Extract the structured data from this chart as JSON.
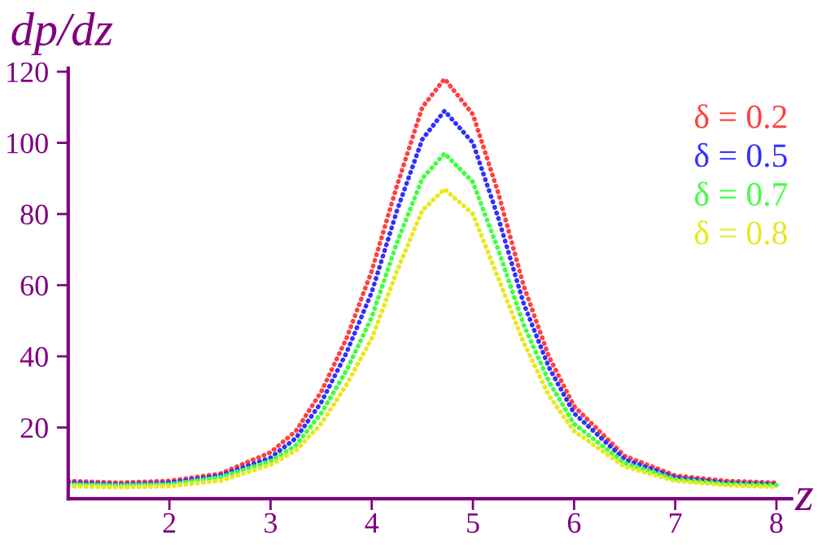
{
  "chart_data": {
    "type": "line",
    "ylabel": "dp/dz",
    "xlabel": "z",
    "xlim": [
      1,
      8.15
    ],
    "ylim": [
      0,
      121
    ],
    "xticks": [
      2,
      3,
      4,
      5,
      6,
      7,
      8
    ],
    "yticks": [
      20,
      40,
      60,
      80,
      100,
      120
    ],
    "line_style": "dotted",
    "marker": "none",
    "grid": false,
    "legend": false,
    "x": [
      1,
      1.5,
      2,
      2.5,
      3,
      3.25,
      3.5,
      3.75,
      4,
      4.25,
      4.5,
      4.72,
      5,
      5.25,
      5.5,
      5.75,
      6,
      6.5,
      7,
      7.5,
      8
    ],
    "series": [
      {
        "name": "δ = 0.2",
        "color": "#ff4040",
        "values": [
          5,
          4.5,
          5,
          7,
          13,
          19,
          30,
          45,
          64,
          88,
          110,
          118,
          108,
          86,
          60,
          40,
          26,
          12,
          6.5,
          5,
          4.5
        ]
      },
      {
        "name": "δ = 0.5",
        "color": "#3030ff",
        "values": [
          4.5,
          4,
          4.5,
          6.5,
          11.5,
          17,
          27,
          41,
          58,
          81,
          101,
          109,
          100,
          79,
          55,
          37,
          24,
          11,
          6,
          4.5,
          4
        ]
      },
      {
        "name": "δ = 0.7",
        "color": "#40ff40",
        "values": [
          4,
          3.7,
          4,
          6,
          10.5,
          15,
          24,
          36,
          51,
          72,
          90,
          97,
          89,
          70,
          49,
          33,
          21,
          10,
          5.5,
          4.2,
          3.8
        ]
      },
      {
        "name": "δ = 0.8",
        "color": "#e8e820",
        "values": [
          3.5,
          3.2,
          3.5,
          5,
          9.5,
          13.5,
          21,
          32,
          45,
          64,
          81,
          87,
          80,
          62,
          44,
          29,
          19,
          9,
          5,
          3.8,
          3.3
        ]
      }
    ]
  }
}
